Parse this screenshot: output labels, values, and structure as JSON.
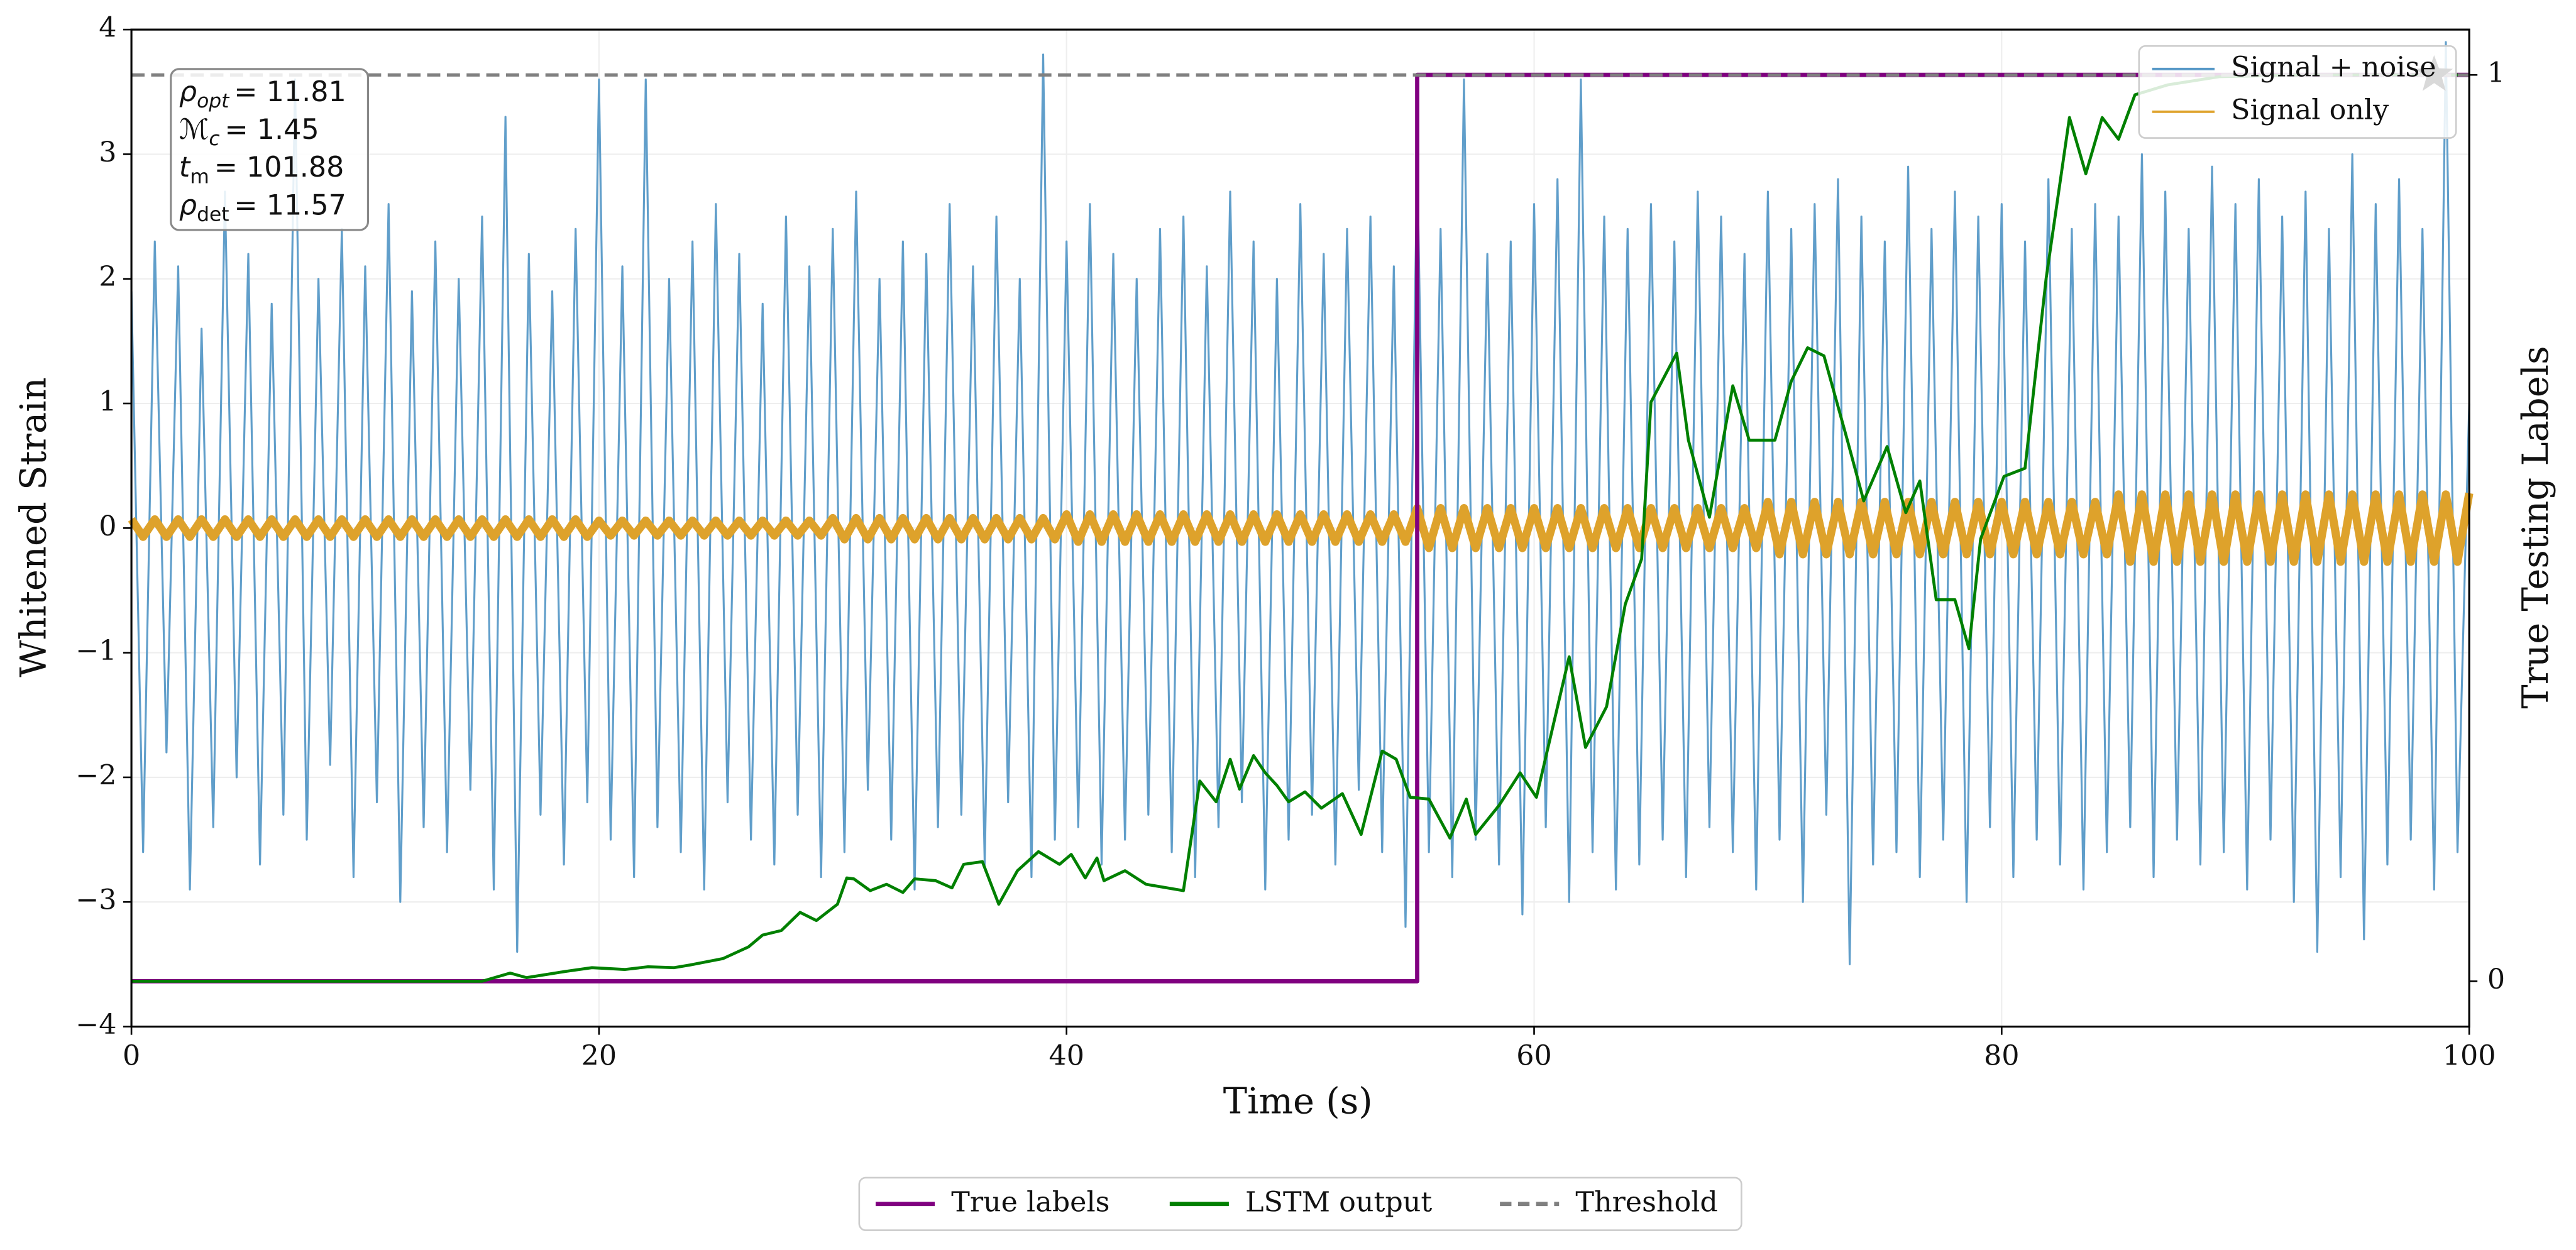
{
  "chart_data": {
    "type": "line",
    "xlabel": "Time (s)",
    "ylabel": "Whitened Strain",
    "y2label": "True Testing Labels",
    "xlim": [
      0,
      100
    ],
    "ylim": [
      -4,
      4
    ],
    "y2lim": [
      -0.05,
      1.05
    ],
    "xticks": [
      0,
      20,
      40,
      60,
      80,
      100
    ],
    "yticks": [
      {
        "value": -4,
        "label": "−4"
      },
      {
        "value": -3,
        "label": "−3"
      },
      {
        "value": -2,
        "label": "−2"
      },
      {
        "value": -1,
        "label": "−1"
      },
      0,
      1,
      2,
      3,
      4
    ],
    "y2ticks": [
      0,
      1
    ],
    "grid": true,
    "x": [
      0,
      0.5,
      1,
      1.5,
      2,
      2.5,
      3,
      3.5,
      4,
      4.5,
      5,
      5.5,
      6,
      6.5,
      7,
      7.5,
      8,
      8.5,
      9,
      9.5,
      10,
      10.5,
      11,
      11.5,
      12,
      12.5,
      13,
      13.5,
      14,
      14.5,
      15,
      15.5,
      16,
      16.5,
      17,
      17.5,
      18,
      18.5,
      19,
      19.5,
      20,
      20.5,
      21,
      21.5,
      22,
      22.5,
      23,
      23.5,
      24,
      24.5,
      25,
      25.5,
      26,
      26.5,
      27,
      27.5,
      28,
      28.5,
      29,
      29.5,
      30,
      30.5,
      31,
      31.5,
      32,
      32.5,
      33,
      33.5,
      34,
      34.5,
      35,
      35.5,
      36,
      36.5,
      37,
      37.5,
      38,
      38.5,
      39,
      39.5,
      40,
      40.5,
      41,
      41.5,
      42,
      42.5,
      43,
      43.5,
      44,
      44.5,
      45,
      45.5,
      46,
      46.5,
      47,
      47.5,
      48,
      48.5,
      49,
      49.5,
      50,
      50.5,
      51,
      51.5,
      52,
      52.5,
      53,
      53.5,
      54,
      54.5,
      55,
      55.5,
      56,
      56.5,
      57,
      57.5,
      58,
      58.5,
      59,
      59.5,
      60,
      60.5,
      61,
      61.5,
      62,
      62.5,
      63,
      63.5,
      64,
      64.5,
      65,
      65.5,
      66,
      66.5,
      67,
      67.5,
      68,
      68.5,
      69,
      69.5,
      70,
      70.5,
      71,
      71.5,
      72,
      72.5,
      73,
      73.5,
      74,
      74.5,
      75,
      75.5,
      76,
      76.5,
      77,
      77.5,
      78,
      78.5,
      79,
      79.5,
      80,
      80.5,
      81,
      81.5,
      82,
      82.5,
      83,
      83.5,
      84,
      84.5,
      85,
      85.5,
      86,
      86.5,
      87,
      87.5,
      88,
      88.5,
      89,
      89.5,
      90,
      90.5,
      91,
      91.5,
      92,
      92.5,
      93,
      93.5,
      94,
      94.5,
      95,
      95.5,
      96,
      96.5,
      97,
      97.5,
      98,
      98.5,
      99,
      99.5,
      100
    ],
    "series": [
      {
        "name": "Signal + noise",
        "color": "#5799c7",
        "legend": "upper right",
        "values": [
          1.9,
          -2.6,
          2.3,
          -1.8,
          2.1,
          -2.9,
          1.6,
          -2.4,
          2.7,
          -2.0,
          2.2,
          -2.7,
          1.8,
          -2.3,
          3.6,
          -2.5,
          2.0,
          -1.9,
          2.4,
          -2.8,
          2.1,
          -2.2,
          2.6,
          -3.0,
          1.9,
          -2.4,
          2.3,
          -2.6,
          2.0,
          -2.1,
          2.5,
          -2.9,
          3.3,
          -3.4,
          2.2,
          -2.3,
          1.9,
          -2.7,
          2.4,
          -2.2,
          3.6,
          -2.5,
          2.1,
          -2.8,
          3.6,
          -2.4,
          2.0,
          -2.6,
          2.3,
          -2.9,
          2.6,
          -2.2,
          2.2,
          -2.5,
          1.8,
          -2.7,
          2.5,
          -2.3,
          2.1,
          -2.8,
          2.4,
          -2.6,
          2.7,
          -2.1,
          2.0,
          -2.5,
          2.3,
          -2.9,
          2.2,
          -2.4,
          2.6,
          -2.3,
          2.1,
          -2.7,
          2.5,
          -2.2,
          2.0,
          -2.8,
          3.8,
          -2.5,
          2.3,
          -2.4,
          2.6,
          -2.7,
          2.2,
          -2.5,
          2.0,
          -2.3,
          2.4,
          -2.6,
          2.5,
          -2.8,
          2.1,
          -2.4,
          2.7,
          -2.2,
          2.3,
          -2.9,
          2.0,
          -2.5,
          2.6,
          -2.3,
          2.2,
          -2.7,
          2.4,
          -2.1,
          2.5,
          -2.6,
          2.1,
          -3.2,
          3.0,
          -2.6,
          2.4,
          -2.8,
          3.6,
          -2.5,
          2.2,
          -2.7,
          2.3,
          -3.1,
          2.6,
          -2.4,
          2.8,
          -3.0,
          3.6,
          -2.6,
          2.5,
          -2.9,
          2.4,
          -2.7,
          2.6,
          -2.5,
          2.3,
          -2.8,
          2.7,
          -2.4,
          2.5,
          -2.6,
          2.2,
          -2.9,
          2.7,
          -2.5,
          2.4,
          -3.0,
          2.6,
          -2.3,
          2.8,
          -3.5,
          2.5,
          -2.7,
          2.3,
          -2.6,
          2.9,
          -2.8,
          2.4,
          -2.5,
          2.7,
          -3.0,
          2.5,
          -2.4,
          2.6,
          -2.8,
          2.3,
          -2.5,
          2.8,
          -2.7,
          2.4,
          -2.9,
          2.6,
          -2.6,
          2.5,
          -2.4,
          3.0,
          -2.8,
          2.7,
          -2.5,
          2.4,
          -2.7,
          2.9,
          -2.6,
          2.6,
          -2.9,
          2.8,
          -2.5,
          2.5,
          -3.0,
          2.7,
          -3.4,
          2.4,
          -2.8,
          3.0,
          -3.3,
          2.6,
          -2.7,
          2.8,
          -2.5,
          2.4,
          -2.9,
          3.9,
          -2.6,
          1.0
        ]
      },
      {
        "name": "Signal only",
        "color": "#dea22b",
        "legend": "upper right",
        "values": [
          0.07,
          -0.07,
          0.07,
          -0.07,
          0.07,
          -0.07,
          0.07,
          -0.07,
          0.07,
          -0.07,
          0.07,
          -0.07,
          0.07,
          -0.07,
          0.07,
          -0.07,
          0.07,
          -0.07,
          0.07,
          -0.07,
          0.07,
          -0.07,
          0.07,
          -0.07,
          0.07,
          -0.07,
          0.07,
          -0.07,
          0.07,
          -0.07,
          0.07,
          -0.07,
          0.07,
          -0.07,
          0.07,
          -0.07,
          0.07,
          -0.07,
          0.07,
          -0.07,
          0.06,
          -0.06,
          0.06,
          -0.06,
          0.06,
          -0.06,
          0.06,
          -0.06,
          0.06,
          -0.06,
          0.06,
          -0.06,
          0.06,
          -0.06,
          0.06,
          -0.06,
          0.06,
          -0.06,
          0.06,
          -0.06,
          0.08,
          -0.09,
          0.08,
          -0.09,
          0.08,
          -0.09,
          0.08,
          -0.09,
          0.08,
          -0.09,
          0.08,
          -0.09,
          0.08,
          -0.09,
          0.08,
          -0.09,
          0.08,
          -0.09,
          0.08,
          -0.09,
          0.11,
          -0.11,
          0.11,
          -0.11,
          0.11,
          -0.11,
          0.11,
          -0.11,
          0.11,
          -0.11,
          0.11,
          -0.11,
          0.11,
          -0.11,
          0.11,
          -0.11,
          0.11,
          -0.11,
          0.11,
          -0.11,
          0.11,
          -0.11,
          0.11,
          -0.11,
          0.11,
          -0.11,
          0.11,
          -0.11,
          0.11,
          -0.11,
          0.16,
          -0.16,
          0.16,
          -0.16,
          0.16,
          -0.16,
          0.16,
          -0.16,
          0.16,
          -0.16,
          0.16,
          -0.16,
          0.16,
          -0.16,
          0.16,
          -0.16,
          0.16,
          -0.16,
          0.16,
          -0.16,
          0.16,
          -0.16,
          0.16,
          -0.16,
          0.16,
          -0.16,
          0.16,
          -0.16,
          0.16,
          -0.16,
          0.21,
          -0.21,
          0.21,
          -0.21,
          0.21,
          -0.21,
          0.21,
          -0.21,
          0.21,
          -0.21,
          0.21,
          -0.21,
          0.21,
          -0.21,
          0.21,
          -0.21,
          0.21,
          -0.21,
          0.21,
          -0.21,
          0.21,
          -0.21,
          0.21,
          -0.21,
          0.21,
          -0.21,
          0.21,
          -0.21,
          0.21,
          -0.21,
          0.27,
          -0.27,
          0.27,
          -0.27,
          0.27,
          -0.27,
          0.27,
          -0.27,
          0.27,
          -0.27,
          0.27,
          -0.27,
          0.27,
          -0.27,
          0.27,
          -0.27,
          0.27,
          -0.27,
          0.27,
          -0.27,
          0.27,
          -0.27,
          0.27,
          -0.27,
          0.27,
          -0.27,
          0.27,
          -0.27,
          0.27,
          -0.27,
          0.28
        ]
      },
      {
        "name": "True labels",
        "color": "#800080",
        "legend": "below",
        "axis": "y2",
        "x": [
          0,
          55,
          55,
          100
        ],
        "values": [
          0,
          0,
          1,
          1
        ]
      },
      {
        "name": "LSTM output",
        "color": "#008000",
        "legend": "below",
        "axis": "y2",
        "x": [
          0,
          15,
          16.2,
          16.9,
          18.6,
          19.7,
          21.1,
          22.1,
          23.2,
          23.9,
          25.3,
          26.4,
          27.0,
          27.8,
          28.6,
          29.3,
          30.2,
          30.6,
          30.9,
          31.6,
          32.3,
          33.0,
          33.5,
          34.4,
          35.1,
          35.6,
          36.4,
          37.1,
          37.9,
          38.8,
          39.7,
          40.2,
          40.8,
          41.3,
          41.6,
          42.5,
          43.4,
          45.0,
          45.7,
          46.4,
          47.0,
          47.4,
          48.0,
          48.5,
          49.0,
          49.5,
          50.2,
          50.9,
          51.8,
          52.6,
          53.5,
          54.1,
          54.7,
          55.5,
          56.4,
          57.1,
          57.5,
          58.5,
          59.4,
          60.1,
          61.5,
          62.2,
          63.1,
          63.9,
          64.6,
          65.0,
          66.1,
          66.6,
          67.5,
          68.5,
          69.2,
          70.3,
          71.0,
          71.7,
          72.4,
          73.4,
          74.1,
          75.1,
          75.9,
          76.5,
          77.2,
          78.0,
          78.6,
          79.1,
          80.1,
          81.0,
          81.9,
          82.9,
          83.6,
          84.3,
          85.0,
          85.7,
          87.1,
          89.3,
          92.8,
          100
        ],
        "values": [
          0,
          0,
          0.009,
          0.004,
          0.011,
          0.015,
          0.013,
          0.016,
          0.015,
          0.018,
          0.025,
          0.038,
          0.051,
          0.056,
          0.076,
          0.067,
          0.085,
          0.114,
          0.113,
          0.1,
          0.107,
          0.098,
          0.113,
          0.111,
          0.103,
          0.129,
          0.132,
          0.085,
          0.122,
          0.143,
          0.129,
          0.14,
          0.114,
          0.136,
          0.111,
          0.122,
          0.107,
          0.1,
          0.221,
          0.198,
          0.245,
          0.212,
          0.249,
          0.23,
          0.216,
          0.198,
          0.209,
          0.191,
          0.207,
          0.162,
          0.254,
          0.245,
          0.203,
          0.201,
          0.158,
          0.201,
          0.162,
          0.194,
          0.23,
          0.203,
          0.358,
          0.258,
          0.303,
          0.416,
          0.466,
          0.639,
          0.693,
          0.597,
          0.512,
          0.657,
          0.597,
          0.597,
          0.662,
          0.699,
          0.69,
          0.597,
          0.53,
          0.59,
          0.517,
          0.552,
          0.421,
          0.421,
          0.367,
          0.488,
          0.557,
          0.566,
          0.775,
          0.953,
          0.891,
          0.953,
          0.929,
          0.978,
          0.989,
          0.998,
          1.0,
          1.0
        ]
      },
      {
        "name": "Threshold",
        "color": "#808080",
        "legend": "below",
        "axis": "y2",
        "style": "dashed",
        "value": 1
      }
    ],
    "star": {
      "x": 98.5,
      "y": 1,
      "axis": "y2",
      "color": "#000000"
    },
    "annotations": [
      {
        "symbol": "ρ",
        "sub": "opt",
        "text": "= 11.81"
      },
      {
        "symbol": "ℳ",
        "sub": "c",
        "text": "= 1.45"
      },
      {
        "symbol": "t",
        "sub": "m",
        "text": "= 101.88"
      },
      {
        "symbol": "ρ",
        "sub": "det",
        "text": "= 11.57"
      }
    ]
  }
}
